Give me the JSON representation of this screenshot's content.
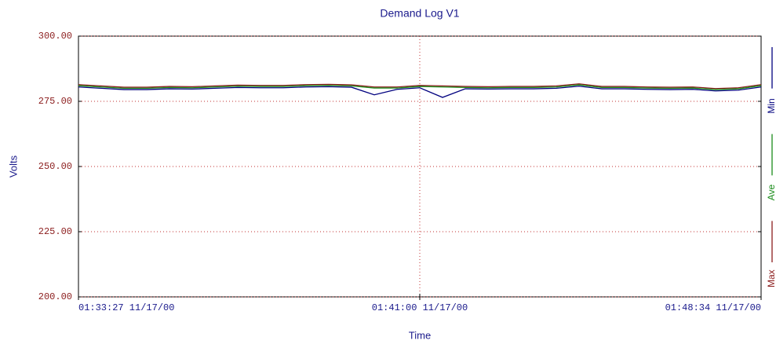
{
  "chart_data": {
    "type": "line",
    "title": "Demand Log V1",
    "y_label": "Volts",
    "x_label": "Time",
    "x": [
      "01:33:27 11/17/00",
      "01:33:57 11/17/00",
      "01:34:27 11/17/00",
      "01:34:58 11/17/00",
      "01:35:28 11/17/00",
      "01:35:58 11/17/00",
      "01:36:28 11/17/00",
      "01:36:59 11/17/00",
      "01:37:29 11/17/00",
      "01:37:59 11/17/00",
      "01:38:29 11/17/00",
      "01:39:00 11/17/00",
      "01:39:30 11/17/00",
      "01:40:00 11/17/00",
      "01:40:30 11/17/00",
      "01:41:00 11/17/00",
      "01:41:31 11/17/00",
      "01:42:01 11/17/00",
      "01:42:31 11/17/00",
      "01:43:01 11/17/00",
      "01:43:32 11/17/00",
      "01:44:02 11/17/00",
      "01:44:32 11/17/00",
      "01:45:02 11/17/00",
      "01:45:33 11/17/00",
      "01:46:03 11/17/00",
      "01:46:33 11/17/00",
      "01:47:03 11/17/00",
      "01:47:34 11/17/00",
      "01:48:04 11/17/00",
      "01:48:34 11/17/00"
    ],
    "xticks": [
      "01:33:27 11/17/00",
      "01:41:00 11/17/00",
      "01:48:34 11/17/00"
    ],
    "ylim": [
      200,
      300
    ],
    "yticks": [
      {
        "value": 200,
        "label": "200.00"
      },
      {
        "value": 225,
        "label": "225.00"
      },
      {
        "value": 250,
        "label": "250.00"
      },
      {
        "value": 275,
        "label": "275.00"
      },
      {
        "value": 300,
        "label": "300.00"
      }
    ],
    "grid": true,
    "series": [
      {
        "name": "Max",
        "color": "#8b1c1c",
        "values": [
          281.4,
          280.9,
          280.4,
          280.4,
          280.7,
          280.6,
          280.9,
          281.2,
          281.1,
          281.1,
          281.4,
          281.5,
          281.3,
          280.5,
          280.5,
          281.1,
          280.9,
          280.7,
          280.6,
          280.7,
          280.7,
          280.9,
          281.7,
          280.7,
          280.7,
          280.5,
          280.4,
          280.5,
          279.9,
          280.2,
          281.4
        ]
      },
      {
        "name": "Ave",
        "color": "#1a8c1a",
        "values": [
          281.0,
          280.5,
          280.0,
          280.0,
          280.3,
          280.2,
          280.5,
          280.8,
          280.7,
          280.7,
          281.0,
          281.1,
          280.9,
          280.1,
          280.1,
          280.7,
          280.5,
          280.3,
          280.2,
          280.3,
          280.3,
          280.5,
          281.3,
          280.3,
          280.3,
          280.1,
          280.0,
          280.1,
          279.5,
          279.8,
          281.0
        ]
      },
      {
        "name": "Min",
        "color": "#00007f",
        "values": [
          280.5,
          280.0,
          279.5,
          279.5,
          279.8,
          279.7,
          280.0,
          280.3,
          280.2,
          280.2,
          280.5,
          280.6,
          280.4,
          277.5,
          279.6,
          280.2,
          276.5,
          279.8,
          279.7,
          279.8,
          279.8,
          280.0,
          280.8,
          279.8,
          279.8,
          279.6,
          279.5,
          279.6,
          279.0,
          279.3,
          280.5
        ]
      }
    ]
  }
}
